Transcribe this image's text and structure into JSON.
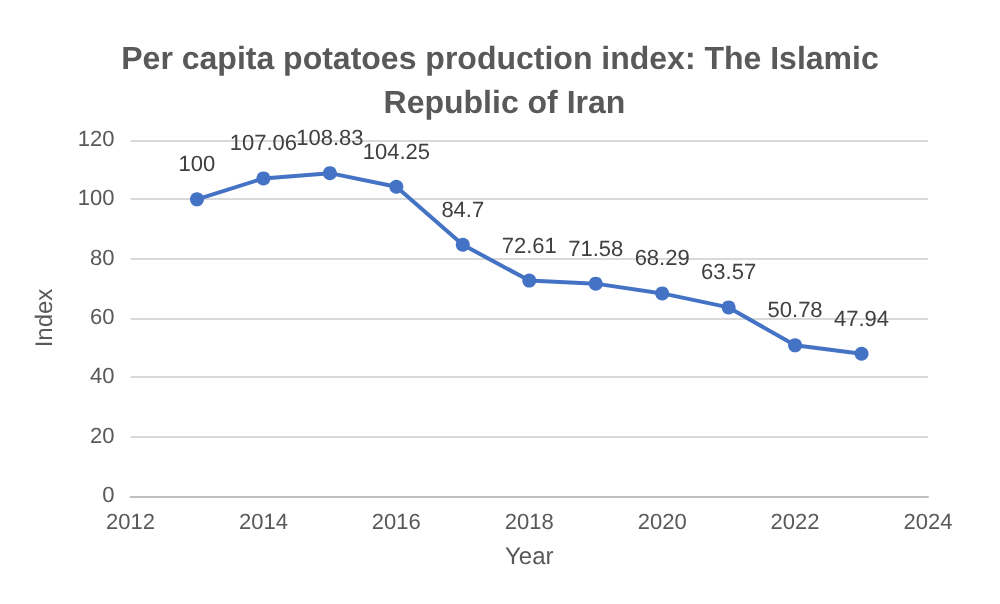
{
  "chart_data": {
    "type": "line",
    "title": "Per capita potatoes production index: The Islamic Republic of Iran",
    "xlabel": "Year",
    "ylabel": "Index",
    "x": [
      2013,
      2014,
      2015,
      2016,
      2017,
      2018,
      2019,
      2020,
      2021,
      2022,
      2023
    ],
    "series": [
      {
        "color": "#4472c4",
        "values": [
          100,
          107.06,
          108.83,
          104.25,
          84.7,
          72.61,
          71.58,
          68.29,
          63.57,
          50.78,
          47.94
        ]
      }
    ],
    "xlim": [
      2012,
      2024
    ],
    "xticks": [
      2012,
      2014,
      2016,
      2018,
      2020,
      2022,
      2024
    ],
    "ylim": [
      0,
      120
    ],
    "yticks": [
      0,
      20,
      40,
      60,
      80,
      100,
      120
    ],
    "grid": "y",
    "data_labels": true,
    "marker": "circle",
    "line_style": "solid"
  }
}
